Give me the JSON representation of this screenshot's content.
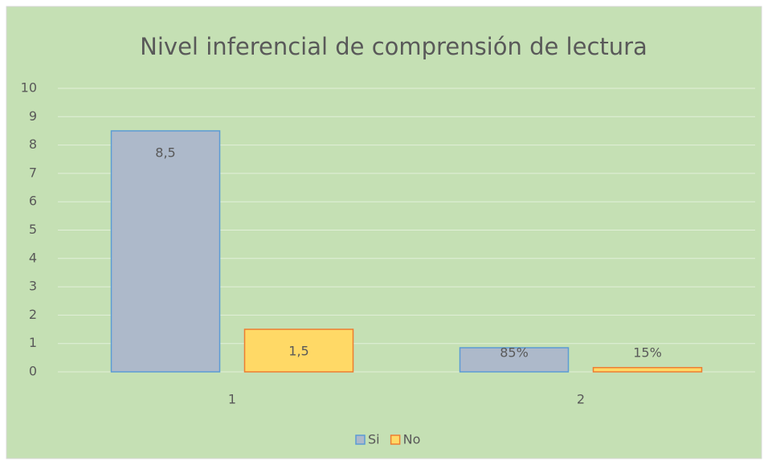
{
  "chart_data": {
    "type": "bar",
    "title": "Nivel inferencial de comprensión de lectura",
    "categories": [
      "1",
      "2"
    ],
    "series": [
      {
        "name": "Si",
        "color": "#adb9ca",
        "edge": "#5b9bd5",
        "values": [
          8.5,
          0.85
        ],
        "value_labels": [
          "8,5",
          "85%"
        ]
      },
      {
        "name": "No",
        "color": "#ffd966",
        "edge": "#ed7d31",
        "values": [
          1.5,
          0.15
        ],
        "value_labels": [
          "1,5",
          "15%"
        ]
      }
    ],
    "ylim": [
      0,
      10
    ],
    "yticks": [
      0,
      1,
      2,
      3,
      4,
      5,
      6,
      7,
      8,
      9,
      10
    ],
    "grid": true,
    "legend": "bottom"
  }
}
